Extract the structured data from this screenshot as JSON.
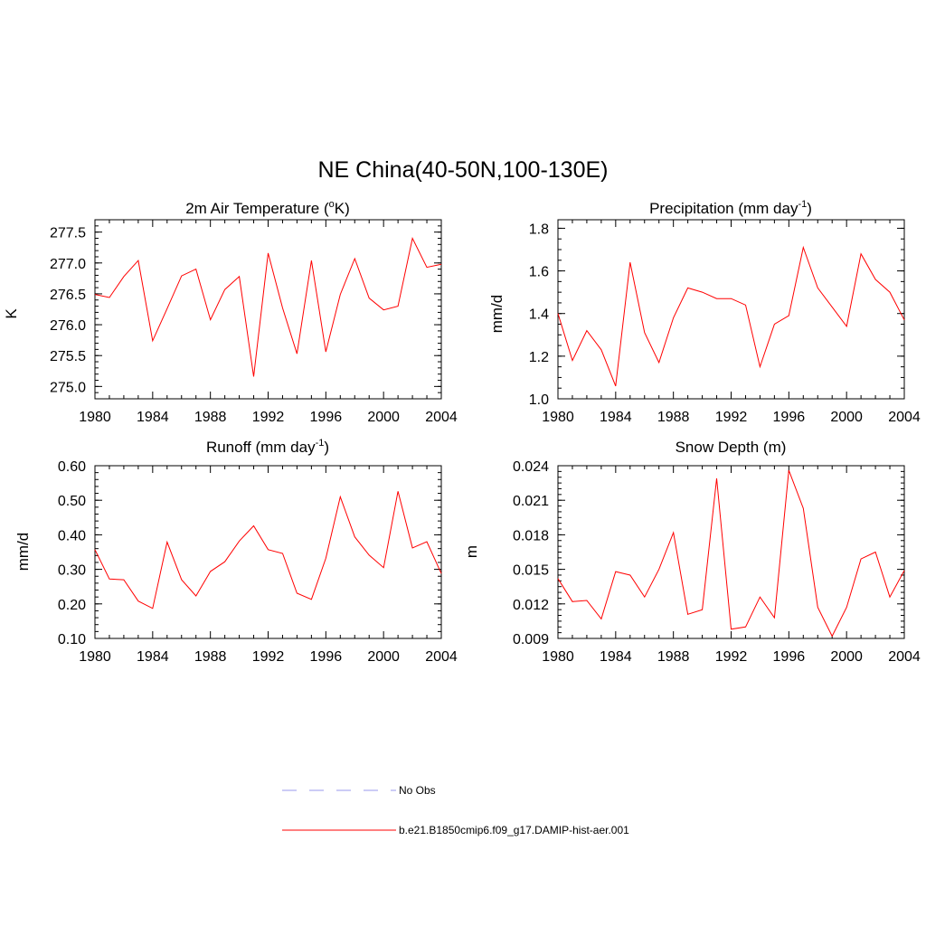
{
  "title": "NE China(40-50N,100-130E)",
  "colors": {
    "model": "#ff0000",
    "obs": "#9999ee",
    "axis": "#000000"
  },
  "chart_data": [
    {
      "type": "line",
      "title_main": "2m Air Temperature (",
      "title_sup": "o",
      "title_tail": "K)",
      "ylabel": "K",
      "xlim": [
        1980,
        2004
      ],
      "ylim": [
        274.8,
        277.7
      ],
      "yticks": [
        "275.0",
        "275.5",
        "276.0",
        "276.5",
        "277.0",
        "277.5"
      ],
      "yminor_step": 0.1,
      "xticks": [
        "1980",
        "1984",
        "1988",
        "1992",
        "1996",
        "2000",
        "2004"
      ],
      "x": [
        1980,
        1981,
        1982,
        1983,
        1984,
        1985,
        1986,
        1987,
        1988,
        1989,
        1990,
        1991,
        1992,
        1993,
        1994,
        1995,
        1996,
        1997,
        1998,
        1999,
        2000,
        2001,
        2002,
        2003,
        2004
      ],
      "series": [
        {
          "values": [
            276.49,
            276.44,
            276.78,
            277.04,
            275.74,
            276.26,
            276.79,
            276.9,
            276.08,
            276.57,
            276.78,
            275.16,
            277.16,
            276.27,
            275.53,
            277.04,
            275.56,
            276.49,
            277.07,
            276.43,
            276.24,
            276.3,
            277.4,
            276.93,
            276.98
          ]
        }
      ]
    },
    {
      "type": "line",
      "title_main": "Precipitation (mm day",
      "title_sup": "-1",
      "title_tail": ")",
      "ylabel": "mm/d",
      "xlim": [
        1980,
        2004
      ],
      "ylim": [
        1.0,
        1.84
      ],
      "yticks": [
        "1.0",
        "1.2",
        "1.4",
        "1.6",
        "1.8"
      ],
      "yminor_step": 0.05,
      "xticks": [
        "1980",
        "1984",
        "1988",
        "1992",
        "1996",
        "2000",
        "2004"
      ],
      "x": [
        1980,
        1981,
        1982,
        1983,
        1984,
        1985,
        1986,
        1987,
        1988,
        1989,
        1990,
        1991,
        1992,
        1993,
        1994,
        1995,
        1996,
        1997,
        1998,
        1999,
        2000,
        2001,
        2002,
        2003,
        2004
      ],
      "series": [
        {
          "values": [
            1.4,
            1.18,
            1.32,
            1.23,
            1.06,
            1.64,
            1.31,
            1.17,
            1.38,
            1.52,
            1.5,
            1.47,
            1.47,
            1.44,
            1.15,
            1.35,
            1.39,
            1.71,
            1.52,
            1.43,
            1.34,
            1.68,
            1.56,
            1.5,
            1.37
          ]
        }
      ]
    },
    {
      "type": "line",
      "title_main": "Runoff (mm day",
      "title_sup": "-1",
      "title_tail": ")",
      "ylabel": "mm/d",
      "xlim": [
        1980,
        2004
      ],
      "ylim": [
        0.1,
        0.6
      ],
      "yticks": [
        "0.10",
        "0.20",
        "0.30",
        "0.40",
        "0.50",
        "0.60"
      ],
      "yminor_step": 0.02,
      "xticks": [
        "1980",
        "1984",
        "1988",
        "1992",
        "1996",
        "2000",
        "2004"
      ],
      "x": [
        1980,
        1981,
        1982,
        1983,
        1984,
        1985,
        1986,
        1987,
        1988,
        1989,
        1990,
        1991,
        1992,
        1993,
        1994,
        1995,
        1996,
        1997,
        1998,
        1999,
        2000,
        2001,
        2002,
        2003,
        2004
      ],
      "series": [
        {
          "values": [
            0.357,
            0.272,
            0.27,
            0.208,
            0.187,
            0.379,
            0.27,
            0.223,
            0.294,
            0.322,
            0.382,
            0.426,
            0.357,
            0.346,
            0.231,
            0.213,
            0.332,
            0.51,
            0.394,
            0.341,
            0.305,
            0.526,
            0.362,
            0.38,
            0.288
          ]
        }
      ]
    },
    {
      "type": "line",
      "title_main": "Snow Depth (m)",
      "title_sup": "",
      "title_tail": "",
      "ylabel": "m",
      "xlim": [
        1980,
        2004
      ],
      "ylim": [
        0.009,
        0.024
      ],
      "yticks": [
        "0.009",
        "0.012",
        "0.015",
        "0.018",
        "0.021",
        "0.024"
      ],
      "yminor_step": 0.0005,
      "xticks": [
        "1980",
        "1984",
        "1988",
        "1992",
        "1996",
        "2000",
        "2004"
      ],
      "x": [
        1980,
        1981,
        1982,
        1983,
        1984,
        1985,
        1986,
        1987,
        1988,
        1989,
        1990,
        1991,
        1992,
        1993,
        1994,
        1995,
        1996,
        1997,
        1998,
        1999,
        2000,
        2001,
        2002,
        2003,
        2004
      ],
      "series": [
        {
          "values": [
            0.0142,
            0.0122,
            0.0123,
            0.0107,
            0.0148,
            0.0145,
            0.0126,
            0.015,
            0.0182,
            0.0111,
            0.0115,
            0.0229,
            0.0098,
            0.01,
            0.0126,
            0.0108,
            0.0236,
            0.0203,
            0.0117,
            0.0092,
            0.0117,
            0.0159,
            0.0165,
            0.0126,
            0.0149
          ]
        }
      ]
    }
  ],
  "legend": [
    {
      "label": "No Obs",
      "style": "dashed",
      "color": "#9999ee"
    },
    {
      "label": "b.e21.B1850cmip6.f09_g17.DAMIP-hist-aer.001",
      "style": "solid",
      "color": "#ff0000"
    }
  ]
}
